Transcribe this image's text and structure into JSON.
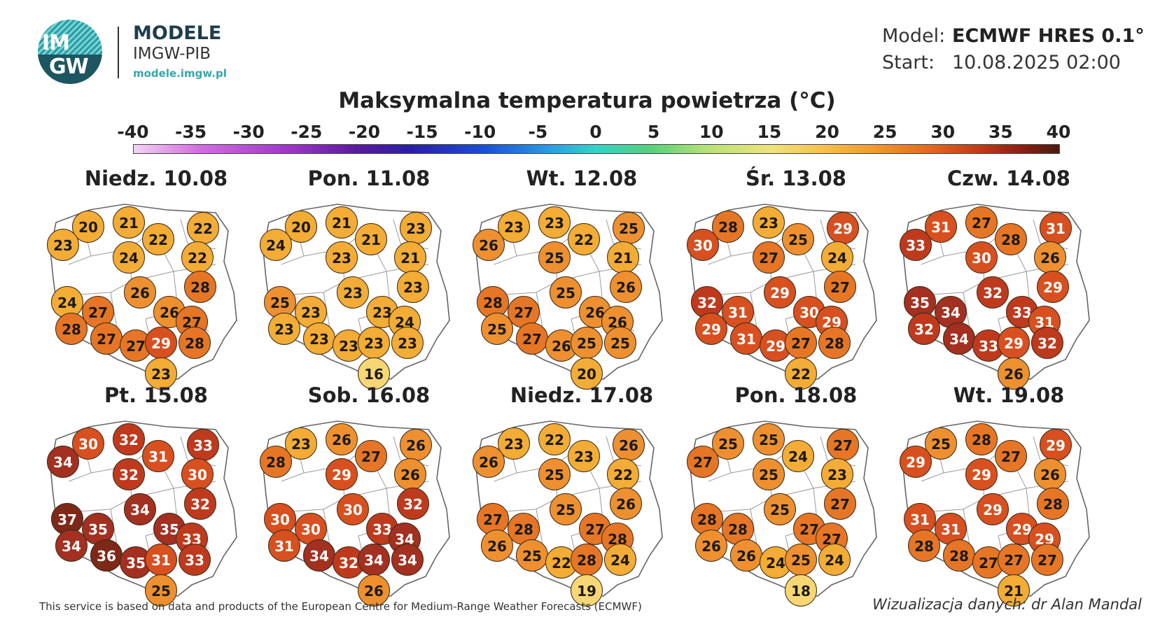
{
  "logo": {
    "line1": "IM",
    "line2": "GW"
  },
  "brand": {
    "name": "MODELE",
    "org": "IMGW-PIB",
    "url": "modele.imgw.pl"
  },
  "meta": {
    "model_label": "Model:",
    "model_value": "ECMWF HRES 0.1°",
    "start_label": "Start:",
    "start_value": "10.08.2025 02:00"
  },
  "title": "Maksymalna temperatura powietrza (°C)",
  "scale": {
    "ticks": [
      "-40",
      "-35",
      "-30",
      "-25",
      "-20",
      "-15",
      "-10",
      "-5",
      "0",
      "5",
      "10",
      "15",
      "20",
      "25",
      "30",
      "35",
      "40"
    ],
    "min": -40,
    "max": 40
  },
  "colors": {
    "t16_19": "#f7d774",
    "t20_24": "#f3ac35",
    "t25_26": "#ee9030",
    "t27_28": "#e67625",
    "t29_31": "#d8501f",
    "t32_33": "#bf3a1d",
    "t34_35": "#a33020",
    "t36_plus": "#7e2818"
  },
  "footer": {
    "left": "This service is based on data and products of the European Centre for Medium-Range Weather Forecasts (ECMWF)",
    "right": "Wizualizacja danych: dr Alan Mandal"
  },
  "days": [
    {
      "label": "Niedz. 10.08",
      "values": [
        20,
        21,
        22,
        22,
        23,
        24,
        22,
        28,
        24,
        27,
        26,
        26,
        27,
        28,
        27,
        27,
        29,
        28,
        23
      ]
    },
    {
      "label": "Pon. 11.08",
      "values": [
        20,
        21,
        21,
        23,
        24,
        23,
        21,
        23,
        25,
        23,
        23,
        23,
        24,
        23,
        23,
        23,
        23,
        23,
        16
      ]
    },
    {
      "label": "Wt. 12.08",
      "values": [
        23,
        23,
        22,
        25,
        26,
        25,
        21,
        26,
        28,
        27,
        25,
        26,
        26,
        25,
        27,
        26,
        25,
        25,
        20
      ]
    },
    {
      "label": "Śr. 13.08",
      "values": [
        28,
        23,
        25,
        29,
        30,
        27,
        24,
        27,
        32,
        31,
        29,
        30,
        29,
        29,
        31,
        29,
        27,
        28,
        22
      ]
    },
    {
      "label": "Czw. 14.08",
      "values": [
        31,
        27,
        28,
        31,
        33,
        30,
        26,
        29,
        35,
        34,
        32,
        33,
        31,
        32,
        34,
        33,
        29,
        32,
        26
      ]
    },
    {
      "label": "Pt. 15.08",
      "values": [
        30,
        32,
        31,
        33,
        34,
        32,
        30,
        32,
        37,
        35,
        34,
        35,
        33,
        34,
        36,
        35,
        31,
        33,
        25
      ]
    },
    {
      "label": "Sob. 16.08",
      "values": [
        23,
        26,
        27,
        26,
        28,
        29,
        26,
        32,
        30,
        30,
        30,
        33,
        34,
        31,
        34,
        32,
        34,
        34,
        26
      ]
    },
    {
      "label": "Niedz. 17.08",
      "values": [
        23,
        22,
        23,
        26,
        26,
        25,
        22,
        26,
        27,
        28,
        25,
        27,
        28,
        26,
        25,
        22,
        28,
        24,
        19
      ]
    },
    {
      "label": "Pon. 18.08",
      "values": [
        25,
        25,
        24,
        27,
        27,
        25,
        23,
        27,
        28,
        28,
        25,
        27,
        27,
        26,
        26,
        24,
        25,
        24,
        18
      ]
    },
    {
      "label": "Wt. 19.08",
      "values": [
        25,
        28,
        27,
        29,
        29,
        29,
        26,
        28,
        31,
        31,
        29,
        29,
        29,
        28,
        28,
        27,
        27,
        27,
        21
      ]
    }
  ]
}
